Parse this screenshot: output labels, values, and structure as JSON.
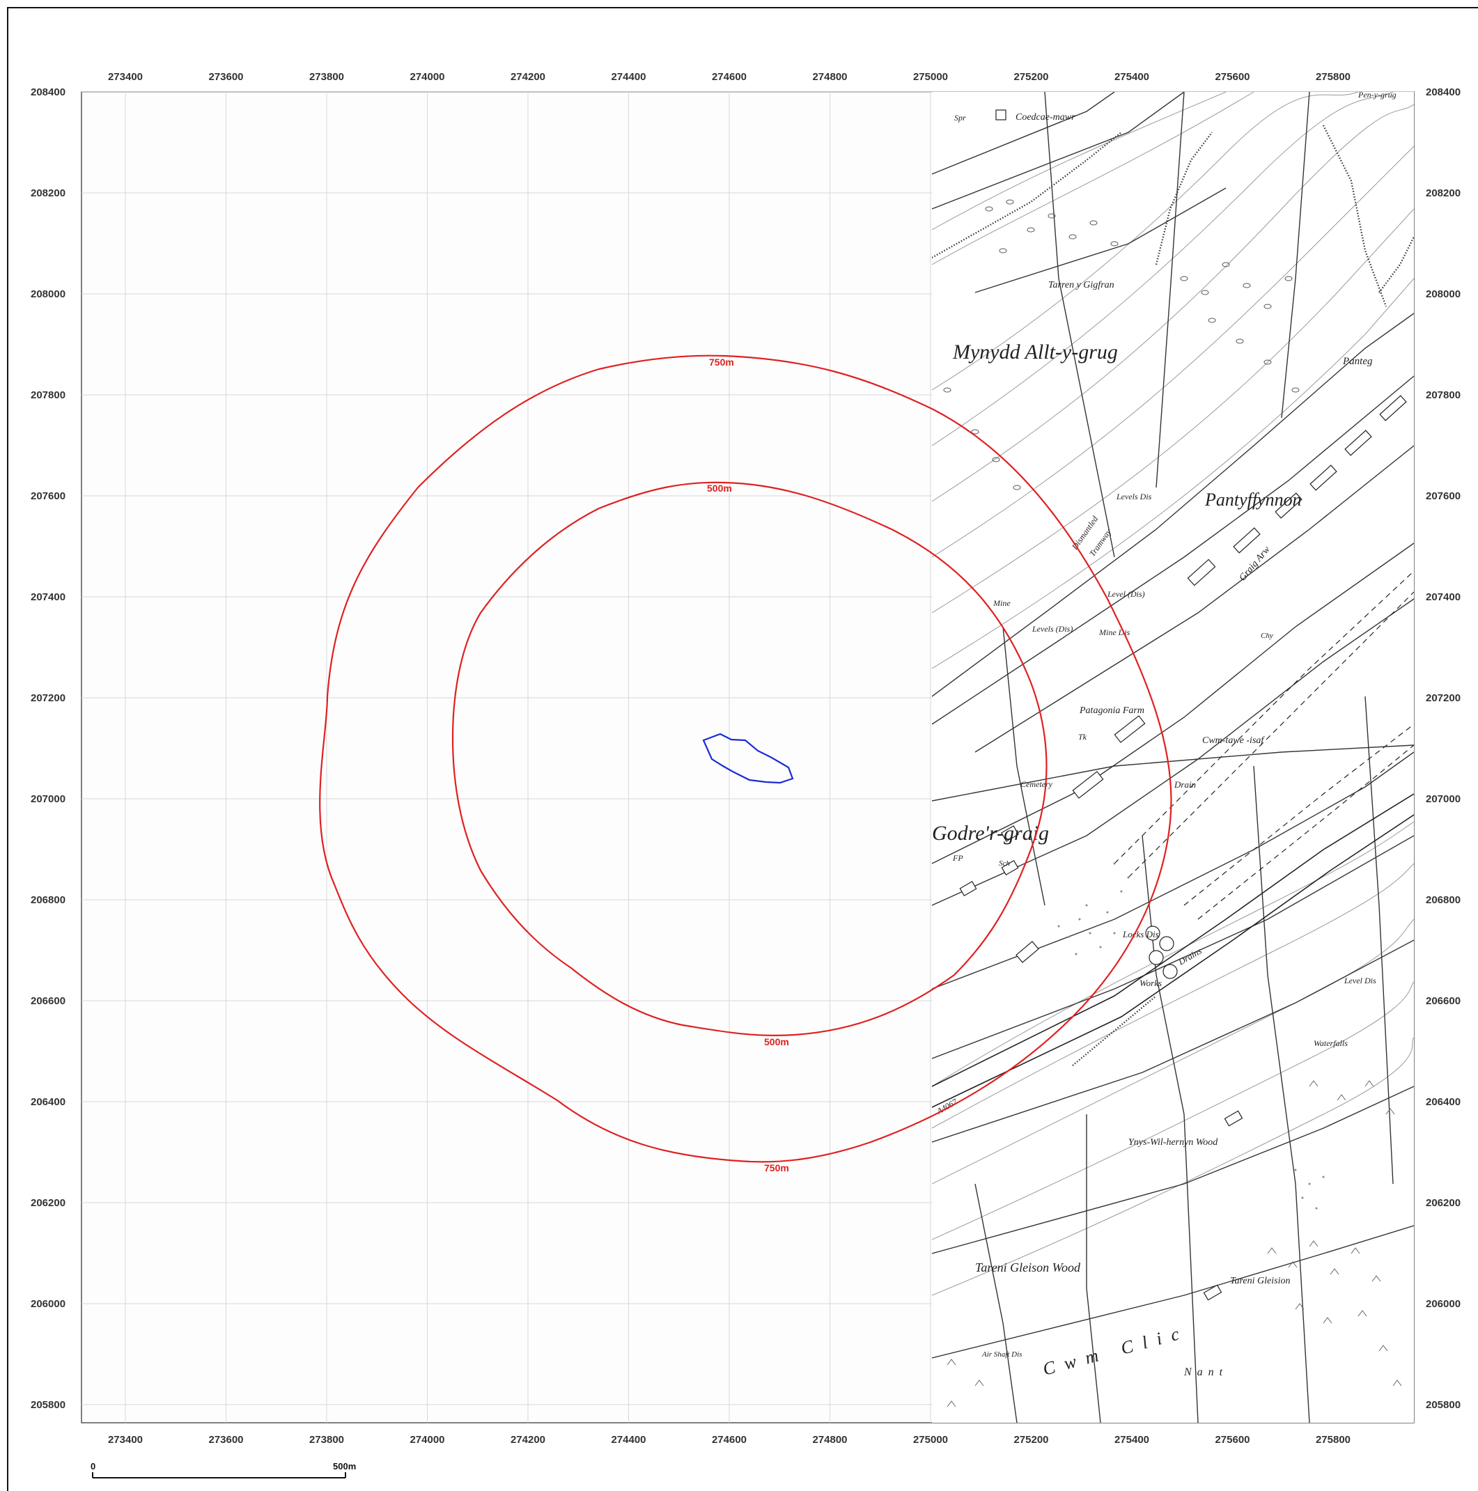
{
  "map": {
    "x_ticks": [
      "273400",
      "273600",
      "273800",
      "274000",
      "274200",
      "274400",
      "274600",
      "274800",
      "275000",
      "275200",
      "275400",
      "275600",
      "275800"
    ],
    "y_ticks": [
      "208400",
      "208200",
      "208000",
      "207800",
      "207600",
      "207400",
      "207200",
      "207000",
      "206800",
      "206600",
      "206400",
      "206200",
      "206000",
      "205800"
    ],
    "buffers": [
      {
        "label": "750m",
        "radius_m": 750,
        "color": "#e02020"
      },
      {
        "label": "500m",
        "radius_m": 500,
        "color": "#e02020"
      }
    ],
    "site_outline_color": "#1a2bd6",
    "basemap_labels": {
      "coedcae": "Coedcae-mawr",
      "tarren": "Tarren y Gigfran",
      "mynydd": "Mynydd Allt-y-grug",
      "panteg": "Panteg",
      "pantyffynnon": "Pantyffynnon",
      "dismantled": "Dismantled",
      "tramway": "Tramway",
      "levels_dis1": "Levels Dis",
      "levels_dis2": "Levels (Dis)",
      "level_dis": "Level (Dis)",
      "mine1": "Mine",
      "mine_dis": "Mine Dis",
      "patagonia": "Patagonia Farm",
      "cemetery": "Cemetery",
      "godrer": "Godre'r-graig",
      "cwm_tawe": "Cwm-tawe -isaf",
      "locks": "Locks Dis",
      "works": "Works",
      "drains": "Drains",
      "drain": "Drain",
      "a4067": "A4067",
      "ynys_wil": "Ynys-Wil-hernyn Wood",
      "tareni_wood": "Tareni Gleison Wood",
      "tareni_gleision": "Tareni Gleision",
      "cwm_clic": "Cwm Clic",
      "nant": "Nant",
      "air_shaft": "Air Shaft Dis",
      "waterfalls": "Waterfalls",
      "grug_arw": "Graig Arw",
      "spr": "Spr",
      "tk": "Tk",
      "fp": "FP",
      "sch": "Sch",
      "chy": "Chy",
      "pen_y_grug": "Pen-y-grug",
      "level_dis2": "Level Dis"
    },
    "scalebar": {
      "start": "0",
      "end": "500m"
    }
  }
}
